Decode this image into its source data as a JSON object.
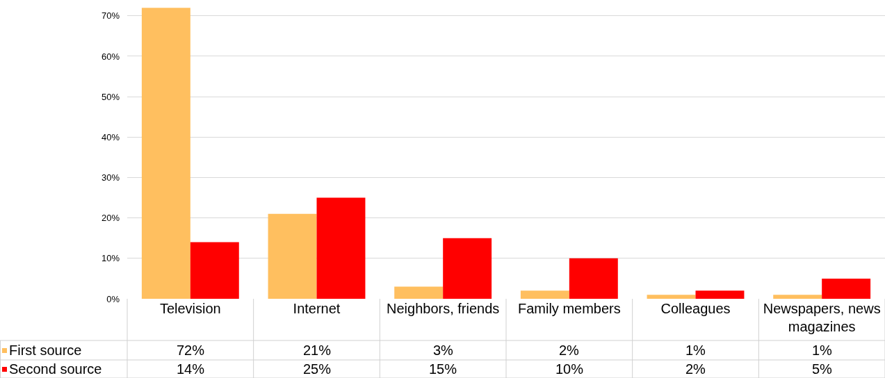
{
  "chart_data": {
    "type": "bar",
    "categories": [
      "Television",
      "Internet",
      "Neighbors, friends",
      "Family members",
      "Colleagues",
      "Newspapers, news magazines"
    ],
    "series": [
      {
        "name": "First source",
        "color": "#ffbf5f",
        "values": [
          72,
          21,
          3,
          2,
          1,
          1
        ],
        "value_labels": [
          "72%",
          "21%",
          "3%",
          "2%",
          "1%",
          "1%"
        ]
      },
      {
        "name": "Second source",
        "color": "#ff0000",
        "values": [
          14,
          25,
          15,
          10,
          2,
          5
        ],
        "value_labels": [
          "14%",
          "25%",
          "15%",
          "10%",
          "2%",
          "5%"
        ]
      }
    ],
    "ylim": [
      0,
      72.2
    ],
    "yticks": [
      {
        "value": 0,
        "label": "0%"
      },
      {
        "value": 10,
        "label": "10%"
      },
      {
        "value": 20,
        "label": "20%"
      },
      {
        "value": 30,
        "label": "30%"
      },
      {
        "value": 40,
        "label": "40%"
      },
      {
        "value": 50,
        "label": "50%"
      },
      {
        "value": 60,
        "label": "60%"
      },
      {
        "value": 70,
        "label": "70%"
      }
    ],
    "grid": "y",
    "legend": "bottom"
  }
}
